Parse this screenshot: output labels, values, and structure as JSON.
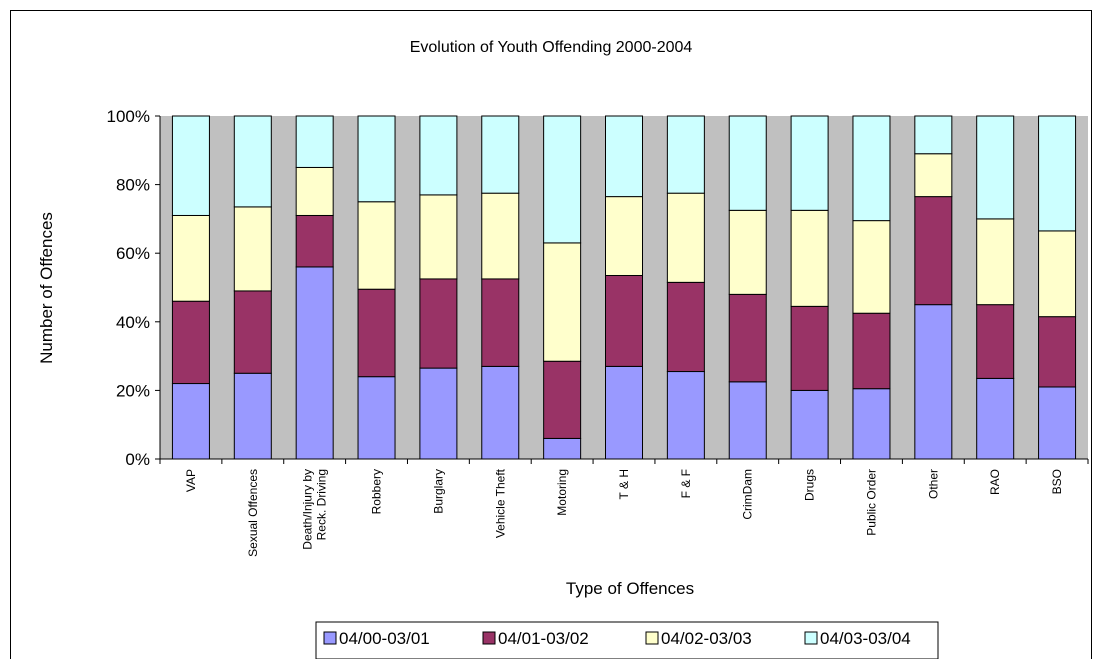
{
  "chart_data": {
    "type": "bar",
    "stacked": "percent",
    "title": "Evolution of Youth Offending 2000-2004",
    "xlabel": "Type of Offences",
    "ylabel": "Number of Offences",
    "ylim": [
      0,
      100
    ],
    "yticks": [
      "0%",
      "20%",
      "40%",
      "60%",
      "80%",
      "100%"
    ],
    "grid": false,
    "legend_position": "bottom",
    "plot_background": "#c0c0c0",
    "categories": [
      [
        "VAP"
      ],
      [
        "Sexual Offences"
      ],
      [
        "Death/Injury by",
        "Reck. Driving"
      ],
      [
        "Robbery"
      ],
      [
        "Burglary"
      ],
      [
        "Vehicle Theft"
      ],
      [
        "Motoring"
      ],
      [
        "T & H"
      ],
      [
        "F & F"
      ],
      [
        "CrimDam"
      ],
      [
        "Drugs"
      ],
      [
        "Public Order"
      ],
      [
        "Other"
      ],
      [
        "RAO"
      ],
      [
        "BSO"
      ]
    ],
    "series": [
      {
        "name": "04/00-03/01",
        "color": "#9999ff",
        "values": [
          22,
          25,
          56,
          24,
          26.5,
          27,
          6,
          27,
          25.5,
          22.5,
          20,
          20.5,
          45,
          23.5,
          21
        ]
      },
      {
        "name": "04/01-03/02",
        "color": "#993366",
        "values": [
          24,
          24,
          15,
          25.5,
          26,
          25.5,
          22.5,
          26.5,
          26,
          25.5,
          24.5,
          22,
          31.5,
          21.5,
          20.5
        ]
      },
      {
        "name": "04/02-03/03",
        "color": "#ffffcc",
        "values": [
          25,
          24.5,
          14,
          25.5,
          24.5,
          25,
          34.5,
          23,
          26,
          24.5,
          28,
          27,
          12.5,
          25,
          25
        ]
      },
      {
        "name": "04/03-03/04",
        "color": "#ccffff",
        "values": [
          29,
          26.5,
          15,
          25,
          23,
          22.5,
          37,
          23.5,
          22.5,
          27.5,
          27.5,
          30.5,
          11,
          30,
          33.5
        ]
      }
    ]
  }
}
